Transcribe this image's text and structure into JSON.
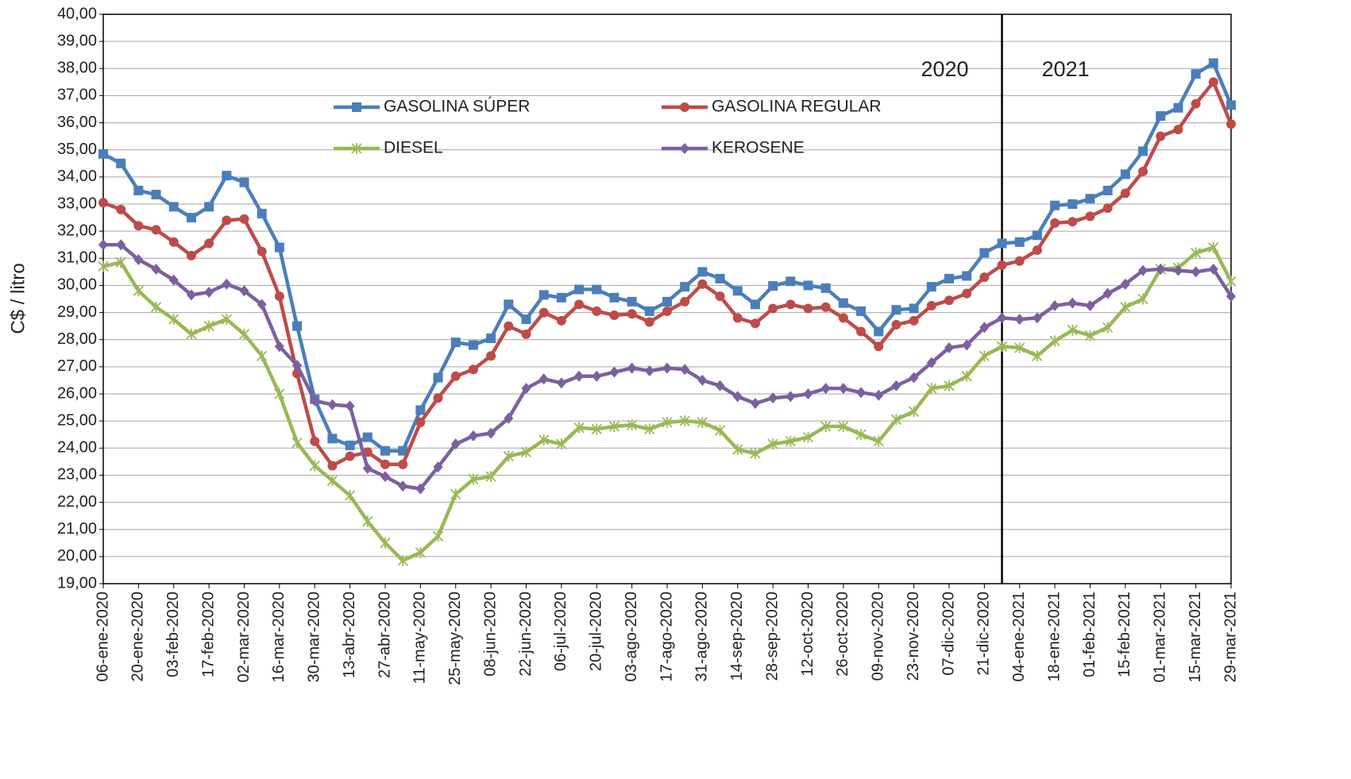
{
  "chart_data": {
    "type": "line",
    "y_label": "C$ / litro",
    "annotations": [
      "2020",
      "2021"
    ],
    "categories": [
      "06-ene-2020",
      null,
      "20-ene-2020",
      null,
      "03-feb-2020",
      null,
      "17-feb-2020",
      null,
      "02-mar-2020",
      null,
      "16-mar-2020",
      null,
      "30-mar-2020",
      null,
      "13-abr-2020",
      null,
      "27-abr-2020",
      null,
      "11-may-2020",
      null,
      "25-may-2020",
      null,
      "08-jun-2020",
      null,
      "22-jun-2020",
      null,
      "06-jul-2020",
      null,
      "20-jul-2020",
      null,
      "03-ago-2020",
      null,
      "17-ago-2020",
      null,
      "31-ago-2020",
      null,
      "14-sep-2020",
      null,
      "28-sep-2020",
      null,
      "12-oct-2020",
      null,
      "26-oct-2020",
      null,
      "09-nov-2020",
      null,
      "23-nov-2020",
      null,
      "07-dic-2020",
      null,
      "21-dic-2020",
      null,
      "04-ene-2021",
      null,
      "18-ene-2021",
      null,
      "01-feb-2021",
      null,
      "15-feb-2021",
      null,
      "01-mar-2021",
      null,
      "15-mar-2021",
      null,
      "29-mar-2021"
    ],
    "series": [
      {
        "name": "GASOLINA SÚPER",
        "color": "#4a7ebb",
        "marker": "square",
        "values": [
          34.85,
          34.5,
          33.5,
          33.35,
          32.9,
          32.5,
          32.9,
          34.05,
          33.8,
          32.65,
          31.4,
          28.5,
          25.8,
          24.35,
          24.1,
          24.4,
          23.9,
          23.9,
          25.4,
          26.6,
          27.9,
          27.8,
          28.05,
          29.3,
          28.75,
          29.65,
          29.55,
          29.85,
          29.85,
          29.55,
          29.4,
          29.05,
          29.4,
          29.95,
          30.5,
          30.25,
          29.8,
          29.3,
          29.98,
          30.15,
          30.0,
          29.9,
          29.35,
          29.05,
          28.3,
          29.1,
          29.15,
          29.95,
          30.25,
          30.35,
          31.2,
          31.55,
          31.6,
          31.85,
          32.95,
          33.0,
          33.2,
          33.5,
          34.1,
          34.95,
          36.25,
          36.55,
          37.8,
          38.2,
          36.65
        ]
      },
      {
        "name": "GASOLINA REGULAR",
        "color": "#be4b48",
        "marker": "circle",
        "values": [
          33.05,
          32.8,
          32.2,
          32.05,
          31.6,
          31.1,
          31.55,
          32.4,
          32.45,
          31.25,
          29.6,
          26.75,
          24.25,
          23.35,
          23.7,
          23.85,
          23.4,
          23.4,
          24.95,
          25.85,
          26.65,
          26.9,
          27.4,
          28.5,
          28.2,
          29.0,
          28.7,
          29.3,
          29.05,
          28.9,
          28.95,
          28.65,
          29.05,
          29.4,
          30.05,
          29.6,
          28.8,
          28.6,
          29.15,
          29.3,
          29.15,
          29.2,
          28.8,
          28.3,
          27.75,
          28.55,
          28.7,
          29.25,
          29.45,
          29.7,
          30.3,
          30.75,
          30.9,
          31.3,
          32.3,
          32.35,
          32.55,
          32.85,
          33.4,
          34.2,
          35.5,
          35.75,
          36.7,
          37.5,
          35.95
        ]
      },
      {
        "name": "DIESEL",
        "color": "#98b954",
        "marker": "star",
        "values": [
          30.7,
          30.85,
          29.8,
          29.2,
          28.75,
          28.2,
          28.5,
          28.75,
          28.2,
          27.4,
          26.0,
          24.2,
          23.35,
          22.8,
          22.25,
          21.3,
          20.5,
          19.85,
          20.15,
          20.75,
          22.3,
          22.85,
          22.95,
          23.7,
          23.85,
          24.3,
          24.15,
          24.75,
          24.7,
          24.8,
          24.85,
          24.7,
          24.95,
          25.0,
          24.95,
          24.65,
          23.95,
          23.8,
          24.15,
          24.25,
          24.4,
          24.8,
          24.8,
          24.5,
          24.25,
          25.05,
          25.35,
          26.2,
          26.3,
          26.65,
          27.4,
          27.75,
          27.7,
          27.4,
          27.95,
          28.35,
          28.15,
          28.45,
          29.2,
          29.5,
          30.6,
          30.65,
          31.2,
          31.4,
          30.15
        ]
      },
      {
        "name": "KEROSENE",
        "color": "#7d5fa0",
        "marker": "diamond",
        "values": [
          31.5,
          31.5,
          30.95,
          30.6,
          30.2,
          29.65,
          29.75,
          30.05,
          29.8,
          29.3,
          27.75,
          27.05,
          25.75,
          25.6,
          25.55,
          23.25,
          22.95,
          22.6,
          22.5,
          23.3,
          24.15,
          24.45,
          24.55,
          25.1,
          26.2,
          26.55,
          26.4,
          26.65,
          26.65,
          26.8,
          26.95,
          26.85,
          26.95,
          26.9,
          26.5,
          26.3,
          25.9,
          25.65,
          25.85,
          25.9,
          26.0,
          26.2,
          26.2,
          26.05,
          25.95,
          26.3,
          26.6,
          27.15,
          27.7,
          27.8,
          28.45,
          28.8,
          28.75,
          28.8,
          29.25,
          29.35,
          29.25,
          29.7,
          30.05,
          30.55,
          30.6,
          30.55,
          30.5,
          30.6,
          29.6
        ]
      }
    ],
    "ylim": [
      19,
      40
    ],
    "yticks": [
      {
        "value": 19,
        "label": "19,00"
      },
      {
        "value": 20,
        "label": "20,00"
      },
      {
        "value": 21,
        "label": "21,00"
      },
      {
        "value": 22,
        "label": "22,00"
      },
      {
        "value": 23,
        "label": "23,00"
      },
      {
        "value": 24,
        "label": "24,00"
      },
      {
        "value": 25,
        "label": "25,00"
      },
      {
        "value": 26,
        "label": "26,00"
      },
      {
        "value": 27,
        "label": "27,00"
      },
      {
        "value": 28,
        "label": "28,00"
      },
      {
        "value": 29,
        "label": "29,00"
      },
      {
        "value": 30,
        "label": "30,00"
      },
      {
        "value": 31,
        "label": "31,00"
      },
      {
        "value": 32,
        "label": "32,00"
      },
      {
        "value": 33,
        "label": "33,00"
      },
      {
        "value": 34,
        "label": "34,00"
      },
      {
        "value": 35,
        "label": "35,00"
      },
      {
        "value": 36,
        "label": "36,00"
      },
      {
        "value": 37,
        "label": "37,00"
      },
      {
        "value": 38,
        "label": "38,00"
      },
      {
        "value": 39,
        "label": "39,00"
      },
      {
        "value": 40,
        "label": "40,00"
      }
    ],
    "grid": true
  }
}
